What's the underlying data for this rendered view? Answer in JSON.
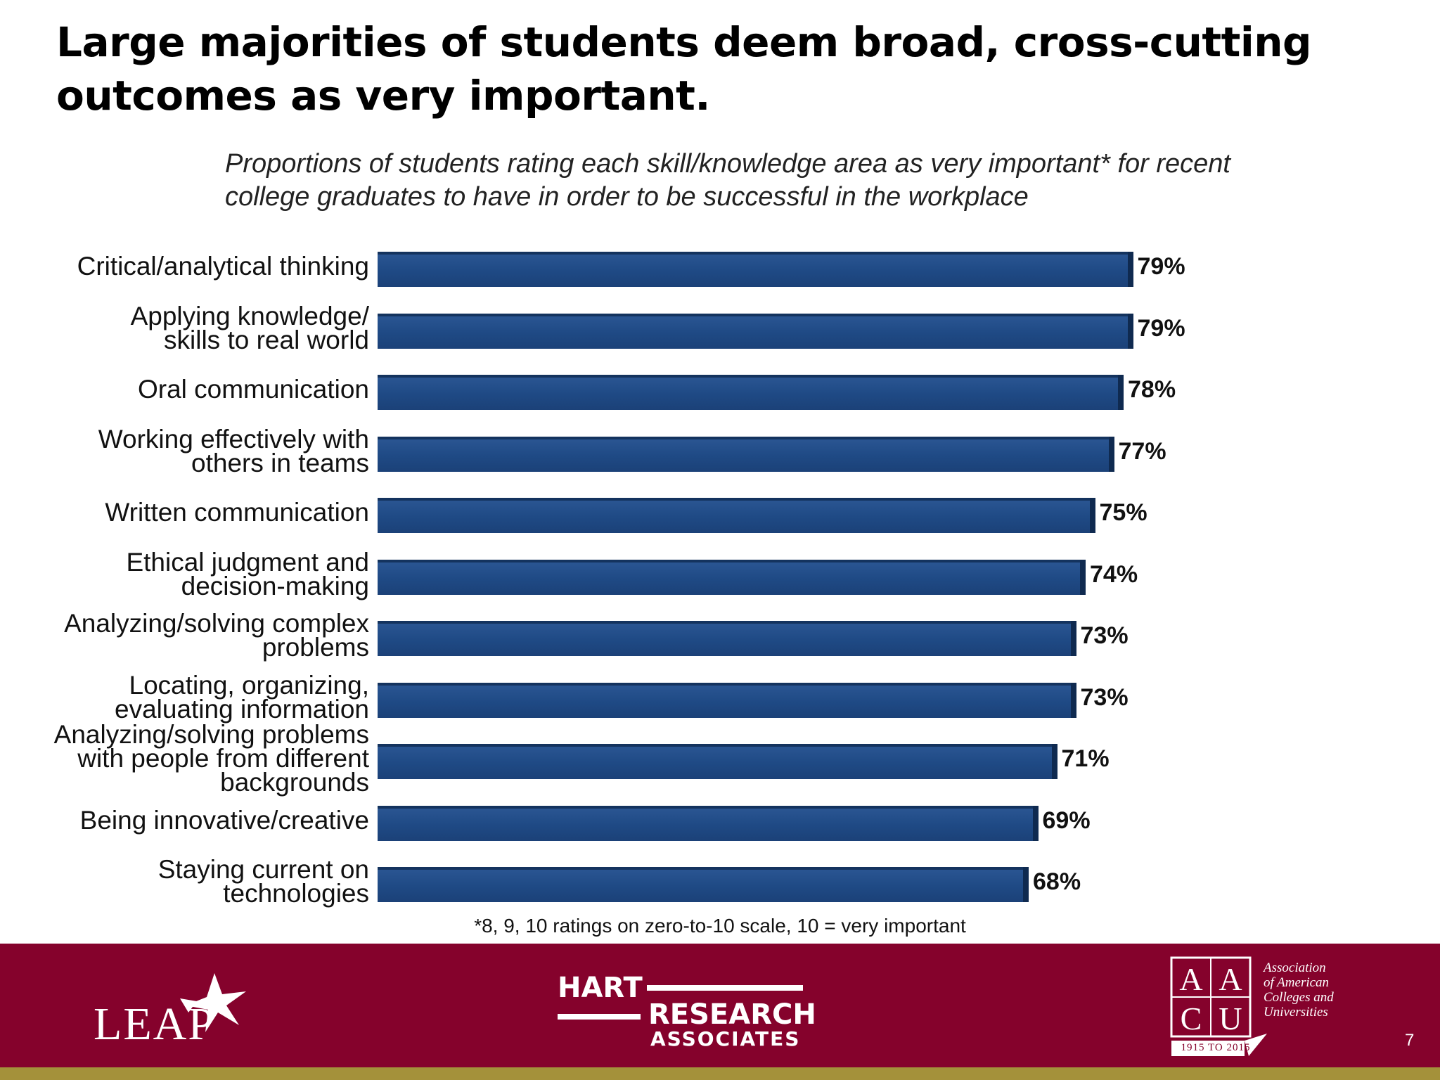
{
  "title": "Large majorities of students deem broad, cross-cutting outcomes as very important.",
  "subtitle": "Proportions of students rating each skill/knowledge area as very important* for recent college graduates to have in order to be successful in the workplace",
  "footnote": "*8, 9, 10 ratings on zero-to-10 scale, 10 = very important",
  "page_number": "7",
  "colors": {
    "bar": "#1f4a85",
    "footer": "#85022c",
    "stripe": "#a4913a"
  },
  "logos": {
    "leap": {
      "icon": "star-burst-icon",
      "text": "LEAP"
    },
    "hart": {
      "line1": "HART",
      "line2": "RESEARCH",
      "line3": "ASSOCIATES"
    },
    "aacu": {
      "monogram": "AAC&U",
      "text": "Association\nof American\nColleges and\nUniversities",
      "years": "1915 TO 2015"
    }
  },
  "chart_data": {
    "type": "bar",
    "orientation": "horizontal",
    "title": "Proportions of students rating each skill/knowledge area as very important* for recent college graduates to have in order to be successful in the workplace",
    "categories": [
      "Critical/analytical thinking",
      "Applying knowledge/\nskills to real world",
      "Oral communication",
      "Working effectively with\nothers in teams",
      "Written communication",
      "Ethical judgment and\ndecision-making",
      "Analyzing/solving complex\nproblems",
      "Locating, organizing,\nevaluating information",
      "Analyzing/solving problems\nwith people from different\nbackgrounds",
      "Being innovative/creative",
      "Staying current on\ntechnologies"
    ],
    "values": [
      79,
      79,
      78,
      77,
      75,
      74,
      73,
      73,
      71,
      69,
      68
    ],
    "value_labels": [
      "79%",
      "79%",
      "78%",
      "77%",
      "75%",
      "74%",
      "73%",
      "73%",
      "71%",
      "69%",
      "68%"
    ],
    "xlim": [
      0,
      100
    ],
    "grid": false,
    "legend": "none"
  }
}
